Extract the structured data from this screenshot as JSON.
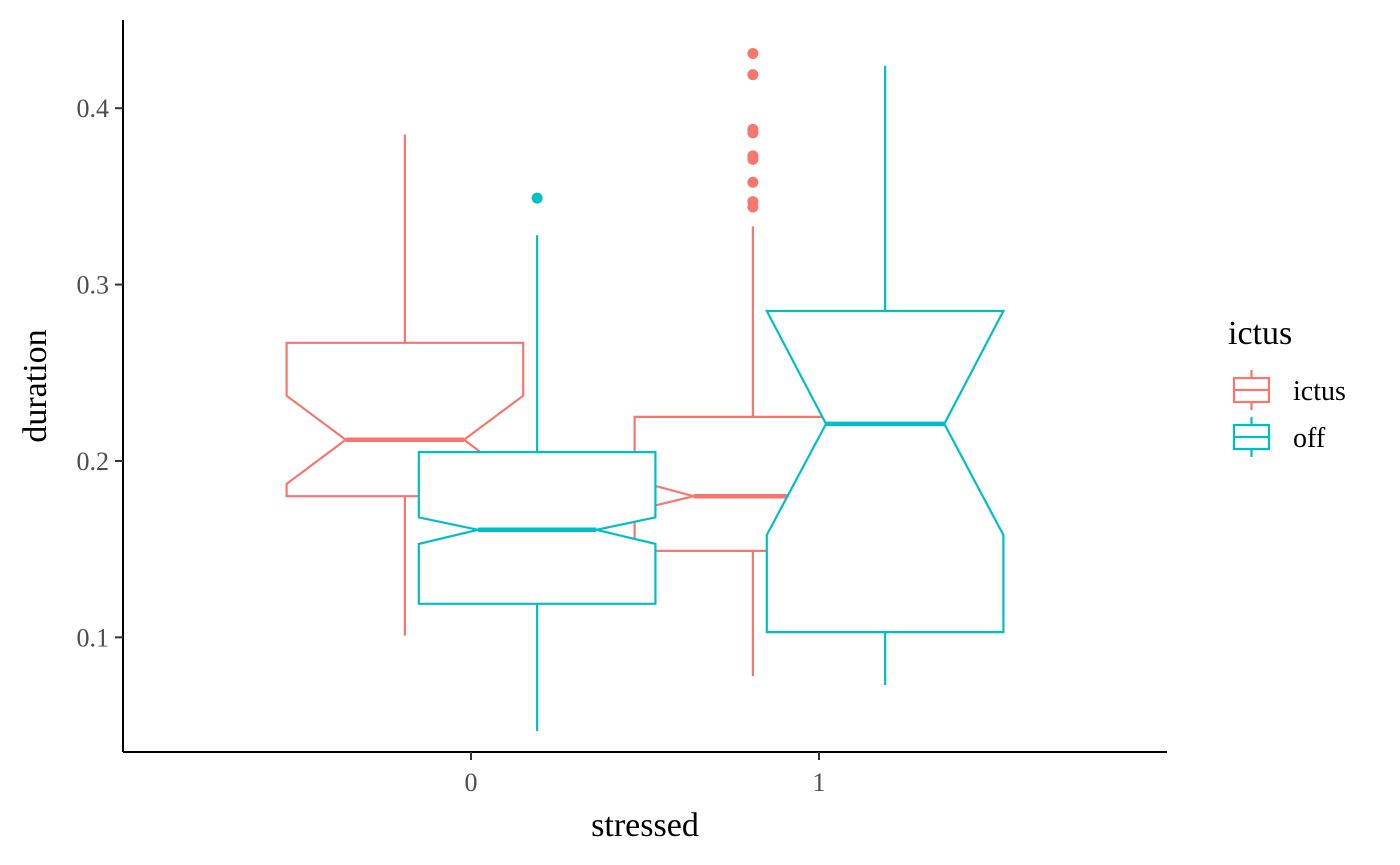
{
  "chart_data": {
    "type": "boxplot",
    "notched": true,
    "xlabel": "stressed",
    "ylabel": "duration",
    "categories": [
      "0",
      "1"
    ],
    "ylim": [
      0.035,
      0.45
    ],
    "yticks": [
      0.1,
      0.2,
      0.3,
      0.4
    ],
    "ytick_labels": [
      "0.1",
      "0.2",
      "0.3",
      "0.4"
    ],
    "grid": false,
    "legend": {
      "title": "ictus",
      "position": "right",
      "entries": [
        "ictus",
        "off"
      ]
    },
    "series": [
      {
        "name": "ictus",
        "color": "#F8766D",
        "boxes": [
          {
            "category": "0",
            "lower_whisker": 0.101,
            "q1": 0.18,
            "median": 0.212,
            "q3": 0.267,
            "upper_whisker": 0.385,
            "notch_low": 0.187,
            "notch_high": 0.237,
            "outliers": []
          },
          {
            "category": "1",
            "lower_whisker": 0.078,
            "q1": 0.149,
            "median": 0.18,
            "q3": 0.225,
            "upper_whisker": 0.333,
            "notch_low": 0.172,
            "notch_high": 0.189,
            "outliers": [
              0.344,
              0.347,
              0.358,
              0.371,
              0.373,
              0.386,
              0.388,
              0.419,
              0.431
            ]
          }
        ]
      },
      {
        "name": "off",
        "color": "#00BFC4",
        "boxes": [
          {
            "category": "0",
            "lower_whisker": 0.047,
            "q1": 0.119,
            "median": 0.161,
            "q3": 0.205,
            "upper_whisker": 0.328,
            "notch_low": 0.153,
            "notch_high": 0.168,
            "outliers": [
              0.349
            ]
          },
          {
            "category": "1",
            "lower_whisker": 0.073,
            "q1": 0.103,
            "median": 0.221,
            "q3": 0.285,
            "upper_whisker": 0.424,
            "notch_low": 0.158,
            "notch_high": 0.285,
            "outliers": []
          }
        ]
      }
    ]
  }
}
